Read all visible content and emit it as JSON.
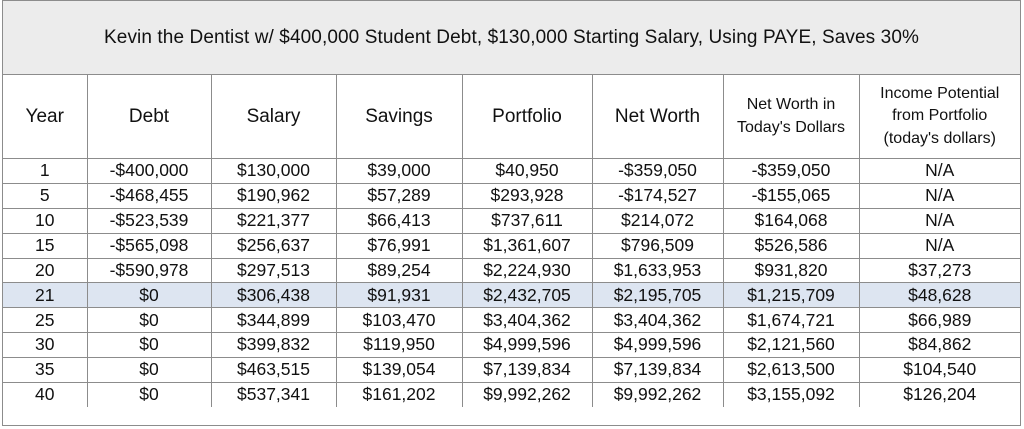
{
  "title": "Kevin the Dentist w/ $400,000 Student Debt, $130,000 Starting Salary, Using PAYE, Saves 30%",
  "headers": {
    "year": "Year",
    "debt": "Debt",
    "salary": "Salary",
    "savings": "Savings",
    "portfolio": "Portfolio",
    "net_worth": "Net Worth",
    "net_worth_today_line1": "Net Worth in",
    "net_worth_today_line2": "Today's Dollars",
    "income_potential_line1": "Income Potential",
    "income_potential_line2": "from Portfolio",
    "income_potential_line3": "(today's dollars)"
  },
  "highlight_color": "#dde5f1",
  "rows": [
    {
      "year": "1",
      "debt": "-$400,000",
      "salary": "$130,000",
      "savings": "$39,000",
      "portfolio": "$40,950",
      "net_worth": "-$359,050",
      "net_worth_today": "-$359,050",
      "income_potential": "N/A"
    },
    {
      "year": "5",
      "debt": "-$468,455",
      "salary": "$190,962",
      "savings": "$57,289",
      "portfolio": "$293,928",
      "net_worth": "-$174,527",
      "net_worth_today": "-$155,065",
      "income_potential": "N/A"
    },
    {
      "year": "10",
      "debt": "-$523,539",
      "salary": "$221,377",
      "savings": "$66,413",
      "portfolio": "$737,611",
      "net_worth": "$214,072",
      "net_worth_today": "$164,068",
      "income_potential": "N/A"
    },
    {
      "year": "15",
      "debt": "-$565,098",
      "salary": "$256,637",
      "savings": "$76,991",
      "portfolio": "$1,361,607",
      "net_worth": "$796,509",
      "net_worth_today": "$526,586",
      "income_potential": "N/A"
    },
    {
      "year": "20",
      "debt": "-$590,978",
      "salary": "$297,513",
      "savings": "$89,254",
      "portfolio": "$2,224,930",
      "net_worth": "$1,633,953",
      "net_worth_today": "$931,820",
      "income_potential": "$37,273"
    },
    {
      "year": "21",
      "debt": "$0",
      "salary": "$306,438",
      "savings": "$91,931",
      "portfolio": "$2,432,705",
      "net_worth": "$2,195,705",
      "net_worth_today": "$1,215,709",
      "income_potential": "$48,628"
    },
    {
      "year": "25",
      "debt": "$0",
      "salary": "$344,899",
      "savings": "$103,470",
      "portfolio": "$3,404,362",
      "net_worth": "$3,404,362",
      "net_worth_today": "$1,674,721",
      "income_potential": "$66,989"
    },
    {
      "year": "30",
      "debt": "$0",
      "salary": "$399,832",
      "savings": "$119,950",
      "portfolio": "$4,999,596",
      "net_worth": "$4,999,596",
      "net_worth_today": "$2,121,560",
      "income_potential": "$84,862"
    },
    {
      "year": "35",
      "debt": "$0",
      "salary": "$463,515",
      "savings": "$139,054",
      "portfolio": "$7,139,834",
      "net_worth": "$7,139,834",
      "net_worth_today": "$2,613,500",
      "income_potential": "$104,540"
    },
    {
      "year": "40",
      "debt": "$0",
      "salary": "$537,341",
      "savings": "$161,202",
      "portfolio": "$9,992,262",
      "net_worth": "$9,992,262",
      "net_worth_today": "$3,155,092",
      "income_potential": "$126,204"
    }
  ]
}
